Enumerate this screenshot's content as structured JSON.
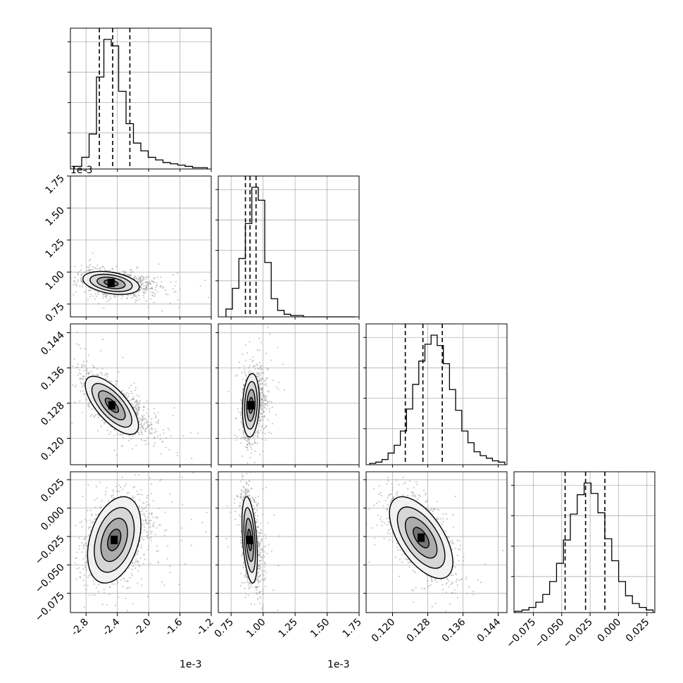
{
  "chart_data": {
    "type": "corner",
    "parameters": [
      {
        "offset": "1e-3",
        "ticks": [
          "-2.8",
          "-2.4",
          "-2.0",
          "-1.6",
          "-1.2"
        ],
        "range": [
          -3.0,
          -1.2
        ],
        "quantiles": [
          -2.63,
          -2.46,
          -2.24
        ],
        "peak": -2.46
      },
      {
        "offset": "1e-3",
        "ticks": [
          "0.75",
          "1.00",
          "1.25",
          "1.50",
          "1.75"
        ],
        "range": [
          0.65,
          1.75
        ],
        "quantiles": [
          0.862,
          0.898,
          0.945
        ],
        "peak": 0.9
      },
      {
        "offset": "",
        "ticks": [
          "0.120",
          "0.128",
          "0.136",
          "0.144"
        ],
        "range": [
          0.114,
          0.146
        ],
        "quantiles": [
          0.1229,
          0.1269,
          0.1313
        ],
        "peak": 0.127
      },
      {
        "offset": "",
        "ticks": [
          "−0.075",
          "−0.050",
          "−0.025",
          "0.000",
          "0.025"
        ],
        "range": [
          -0.092,
          0.032
        ],
        "quantiles": [
          -0.047,
          -0.029,
          -0.012
        ],
        "peak": -0.028
      }
    ],
    "hist": [
      [
        0.02,
        0.09,
        0.27,
        0.71,
        1.0,
        0.95,
        0.6,
        0.35,
        0.2,
        0.14,
        0.09,
        0.07,
        0.05,
        0.04,
        0.03,
        0.02,
        0.01,
        0.01
      ],
      [
        0.06,
        0.22,
        0.45,
        0.72,
        1.0,
        0.9,
        0.42,
        0.14,
        0.05,
        0.02,
        0.01,
        0.01,
        0.0,
        0.0,
        0.0,
        0.0,
        0.0,
        0.0,
        0.0,
        0.0
      ],
      [
        0.01,
        0.02,
        0.04,
        0.09,
        0.15,
        0.26,
        0.43,
        0.62,
        0.8,
        0.93,
        1.0,
        0.92,
        0.78,
        0.58,
        0.42,
        0.26,
        0.17,
        0.1,
        0.07,
        0.05,
        0.03,
        0.02
      ],
      [
        0.01,
        0.02,
        0.04,
        0.08,
        0.14,
        0.24,
        0.38,
        0.56,
        0.76,
        0.91,
        1.0,
        0.92,
        0.77,
        0.57,
        0.4,
        0.24,
        0.13,
        0.07,
        0.04,
        0.02
      ]
    ],
    "pairs": [
      {
        "row": 1,
        "col": 0,
        "cx": -2.48,
        "cy": 0.915,
        "sx": 0.18,
        "sy": 0.045,
        "rho": -0.35
      },
      {
        "row": 2,
        "col": 0,
        "cx": -2.47,
        "cy": 0.1275,
        "sx": 0.17,
        "sy": 0.0033,
        "rho": -0.7
      },
      {
        "row": 2,
        "col": 1,
        "cx": 0.905,
        "cy": 0.1275,
        "sx": 0.033,
        "sy": 0.0036,
        "rho": 0.15
      },
      {
        "row": 3,
        "col": 0,
        "cx": -2.44,
        "cy": -0.028,
        "sx": 0.17,
        "sy": 0.019,
        "rho": 0.35
      },
      {
        "row": 3,
        "col": 1,
        "cx": 0.895,
        "cy": -0.028,
        "sx": 0.03,
        "sy": 0.019,
        "rho": -0.4
      },
      {
        "row": 3,
        "col": 2,
        "cx": 0.1265,
        "cy": -0.026,
        "sx": 0.0036,
        "sy": 0.018,
        "rho": -0.6
      }
    ],
    "contour_levels_sigma": [
      0.5,
      1.0,
      1.5,
      2.0
    ],
    "grid": true
  }
}
